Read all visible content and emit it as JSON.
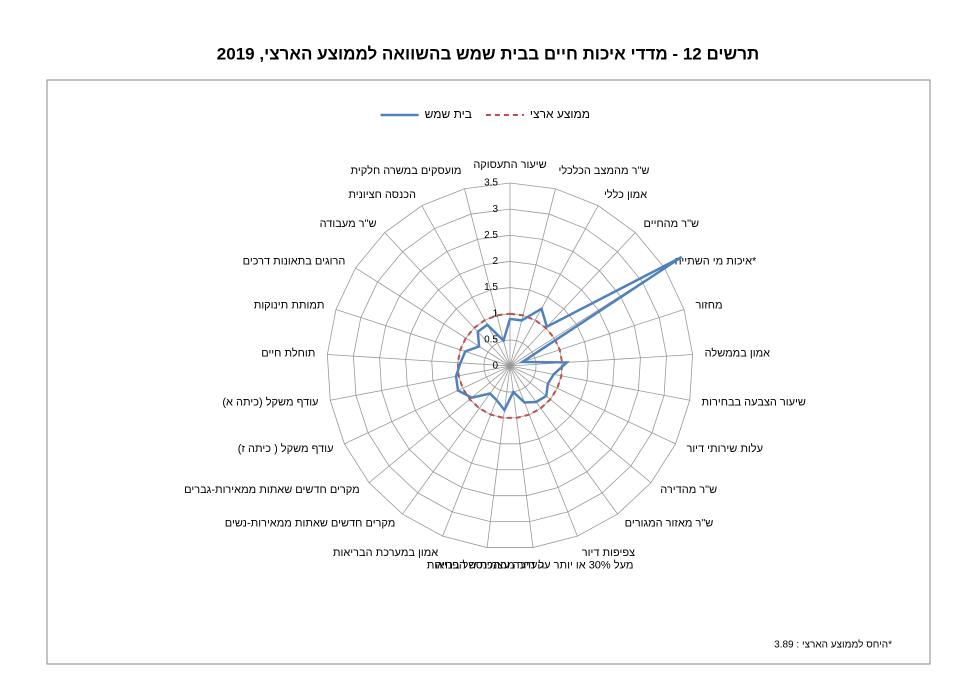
{
  "chart_data": {
    "type": "radar",
    "title": "תרשים 12 - מדדי איכות חיים בבית שמש בהשוואה לממוצע הארצי, 2019",
    "categories": [
      "שיעור התעסוקה",
      "ש\"ר מהמצב הכלכלי",
      "אמון כללי",
      "ש\"ר מהחיים",
      "איכות מי השתייה*",
      "מחזור",
      "אמון בממשלה",
      "שיעור הצבעה בבחירות",
      "עלות שירותי דיור",
      "ש\"ר מהדירה",
      "ש\"ר מאזור המגורים",
      "צפיפות דיור",
      "מעל 30% או יותר על דיור מההכנסה הפנויה",
      "הערכה עצמית של בריאות",
      "אמון במערכת הבריאות",
      "מקרים חדשים שאתות ממאירות-נשים",
      "מקרים חדשים שאתות ממאירות-גברים",
      "עודף משקל ( כיתה ז)",
      "עודף משקל (כיתה א)",
      "תוחלת חיים",
      "תמותת תינוקות",
      "הרוגים בתאונות דרכים",
      "ש\"ר מעבודה",
      "הכנסה חציונית",
      "מועסקים במשרה חלקית"
    ],
    "series": [
      {
        "name": "בית שמש",
        "color": "#4f81bd",
        "dash": false,
        "values": [
          0.9,
          0.9,
          1.25,
          1.03,
          3.89,
          0.25,
          1.09,
          0.85,
          0.8,
          0.9,
          0.85,
          0.75,
          0.5,
          0.85,
          0.7,
          0.65,
          0.95,
          1.1,
          1.05,
          0.95,
          0.9,
          0.7,
          0.9,
          0.9,
          0.5
        ]
      },
      {
        "name": "ממוצע ארצי",
        "color": "#c0504d",
        "dash": true,
        "values": [
          1,
          1,
          1,
          1,
          1,
          1,
          1,
          1,
          1,
          1,
          1,
          1,
          1,
          1,
          1,
          1,
          1,
          1,
          1,
          1,
          1,
          1,
          1,
          1,
          1
        ]
      }
    ],
    "rlim": [
      0,
      3.5
    ],
    "rticks": [
      0,
      0.5,
      1,
      1.5,
      2,
      2.5,
      3,
      3.5
    ],
    "note": "היחס לממוצע הארצי : 3.89*"
  }
}
